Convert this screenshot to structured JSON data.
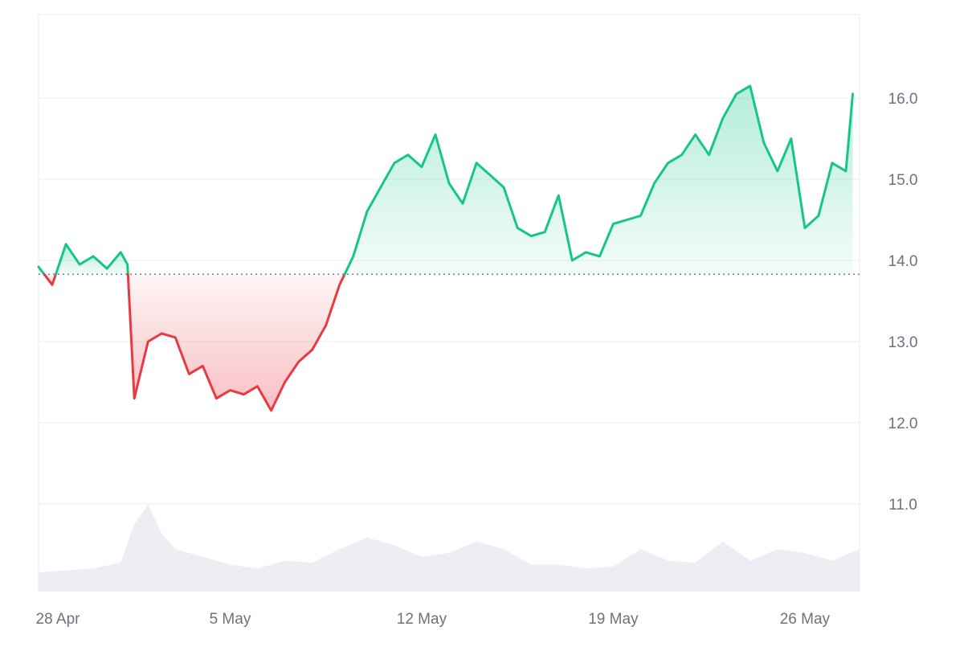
{
  "chart_data": {
    "type": "area",
    "baseline": 13.83,
    "ylim": [
      10.0,
      17.0
    ],
    "y_ticks": [
      11.0,
      12.0,
      13.0,
      14.0,
      15.0,
      16.0
    ],
    "y_tick_labels": [
      "11.0",
      "12.0",
      "13.0",
      "14.0",
      "15.0",
      "16.0"
    ],
    "x_ticks": [
      "2025-04-28",
      "2025-05-05",
      "2025-05-12",
      "2025-05-19",
      "2025-05-26"
    ],
    "x_tick_labels": [
      "28 Apr",
      "5 May",
      "12 May",
      "19 May",
      "26 May"
    ],
    "xlim": [
      "2025-04-28",
      "2025-05-28"
    ],
    "grid": true,
    "colors": {
      "up": "#16c784",
      "down": "#ea3943",
      "baseline": "#6b7280",
      "volume": "#eceef3",
      "grid": "#eceef2"
    },
    "price": {
      "x": [
        "2025-04-28",
        "2025-04-28T12:00",
        "2025-04-29",
        "2025-04-29T12:00",
        "2025-04-30",
        "2025-04-30T12:00",
        "2025-05-01",
        "2025-05-01T06:00",
        "2025-05-01T12:00",
        "2025-05-02",
        "2025-05-02T12:00",
        "2025-05-03",
        "2025-05-03T12:00",
        "2025-05-04",
        "2025-05-04T12:00",
        "2025-05-05",
        "2025-05-05T12:00",
        "2025-05-06",
        "2025-05-06T12:00",
        "2025-05-07",
        "2025-05-07T12:00",
        "2025-05-08",
        "2025-05-08T12:00",
        "2025-05-09",
        "2025-05-09T12:00",
        "2025-05-10",
        "2025-05-10T12:00",
        "2025-05-11",
        "2025-05-11T12:00",
        "2025-05-12",
        "2025-05-12T12:00",
        "2025-05-13",
        "2025-05-13T12:00",
        "2025-05-14",
        "2025-05-14T12:00",
        "2025-05-15",
        "2025-05-15T12:00",
        "2025-05-16",
        "2025-05-16T12:00",
        "2025-05-17",
        "2025-05-17T12:00",
        "2025-05-18",
        "2025-05-18T12:00",
        "2025-05-19",
        "2025-05-19T12:00",
        "2025-05-20",
        "2025-05-20T12:00",
        "2025-05-21",
        "2025-05-21T12:00",
        "2025-05-22",
        "2025-05-22T12:00",
        "2025-05-23",
        "2025-05-23T12:00",
        "2025-05-24",
        "2025-05-24T12:00",
        "2025-05-25",
        "2025-05-25T12:00",
        "2025-05-26",
        "2025-05-26T12:00",
        "2025-05-27",
        "2025-05-27T12:00",
        "2025-05-27T18:00"
      ],
      "y": [
        13.92,
        13.7,
        14.2,
        13.95,
        14.05,
        13.9,
        14.1,
        13.95,
        12.3,
        13.0,
        13.1,
        13.05,
        12.6,
        12.7,
        12.3,
        12.4,
        12.35,
        12.45,
        12.15,
        12.5,
        12.75,
        12.9,
        13.2,
        13.7,
        14.05,
        14.6,
        14.9,
        15.2,
        15.3,
        15.15,
        15.55,
        14.95,
        14.7,
        15.2,
        15.05,
        14.9,
        14.4,
        14.3,
        14.35,
        14.8,
        14.0,
        14.1,
        14.05,
        14.45,
        14.5,
        14.55,
        14.95,
        15.2,
        15.3,
        15.55,
        15.3,
        15.75,
        16.05,
        16.15,
        15.45,
        15.1,
        15.5,
        14.4,
        14.55,
        15.2,
        15.1,
        16.05
      ]
    },
    "volume": {
      "x": [
        "2025-04-28",
        "2025-04-29",
        "2025-04-30",
        "2025-05-01",
        "2025-05-01T12:00",
        "2025-05-02",
        "2025-05-02T12:00",
        "2025-05-03",
        "2025-05-04",
        "2025-05-05",
        "2025-05-06",
        "2025-05-07",
        "2025-05-08",
        "2025-05-09",
        "2025-05-10",
        "2025-05-11",
        "2025-05-12",
        "2025-05-13",
        "2025-05-14",
        "2025-05-15",
        "2025-05-16",
        "2025-05-17",
        "2025-05-18",
        "2025-05-19",
        "2025-05-20",
        "2025-05-21",
        "2025-05-22",
        "2025-05-23",
        "2025-05-24",
        "2025-05-25",
        "2025-05-26",
        "2025-05-27",
        "2025-05-28"
      ],
      "values": [
        0.1,
        0.11,
        0.12,
        0.15,
        0.35,
        0.45,
        0.3,
        0.22,
        0.18,
        0.14,
        0.12,
        0.16,
        0.15,
        0.22,
        0.28,
        0.24,
        0.18,
        0.2,
        0.26,
        0.22,
        0.14,
        0.14,
        0.12,
        0.13,
        0.22,
        0.16,
        0.15,
        0.26,
        0.16,
        0.22,
        0.2,
        0.16,
        0.22
      ]
    }
  }
}
